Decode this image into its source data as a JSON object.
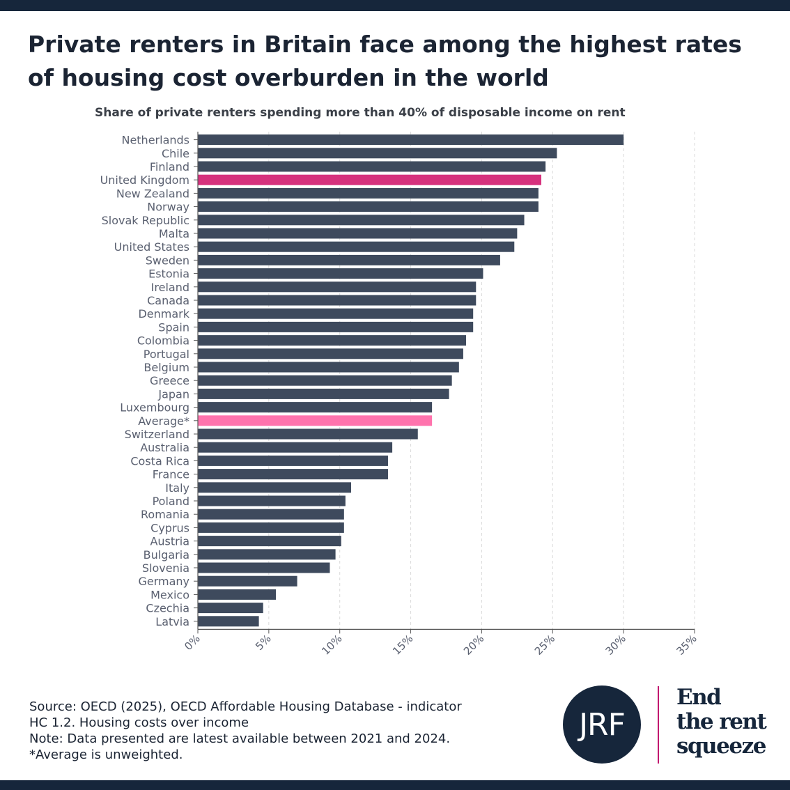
{
  "title": "Private renters in Britain face among the highest rates of housing cost overburden in the world",
  "chart_data": {
    "type": "bar",
    "orientation": "horizontal",
    "subtitle": "Share of private renters spending more than 40% of disposable income on rent",
    "categories": [
      "Netherlands",
      "Chile",
      "Finland",
      "United Kingdom",
      "New Zealand",
      "Norway",
      "Slovak Republic",
      "Malta",
      "United States",
      "Sweden",
      "Estonia",
      "Ireland",
      "Canada",
      "Denmark",
      "Spain",
      "Colombia",
      "Portugal",
      "Belgium",
      "Greece",
      "Japan",
      "Luxembourg",
      "Average*",
      "Switzerland",
      "Australia",
      "Costa Rica",
      "France",
      "Italy",
      "Poland",
      "Romania",
      "Cyprus",
      "Austria",
      "Bulgaria",
      "Slovenia",
      "Germany",
      "Mexico",
      "Czechia",
      "Latvia"
    ],
    "values": [
      30.0,
      25.3,
      24.5,
      24.2,
      24.0,
      24.0,
      23.0,
      22.5,
      22.3,
      21.3,
      20.1,
      19.6,
      19.6,
      19.4,
      19.4,
      18.9,
      18.7,
      18.4,
      17.9,
      17.7,
      16.5,
      16.5,
      15.5,
      13.7,
      13.4,
      13.4,
      10.8,
      10.4,
      10.3,
      10.3,
      10.1,
      9.7,
      9.3,
      7.0,
      5.5,
      4.6,
      4.3
    ],
    "xlim": [
      0,
      35
    ],
    "x_ticks": [
      0,
      5,
      10,
      15,
      20,
      25,
      30,
      35
    ],
    "x_tick_labels": [
      "0%",
      "5%",
      "10%",
      "15%",
      "20%",
      "25%",
      "30%",
      "35%"
    ],
    "grid": "vertical dashed",
    "colors": {
      "default": "#3e4a5d",
      "United Kingdom": "#d6317d",
      "Average*": "#ff73ad"
    }
  },
  "source_lines": [
    "Source: OECD (2025), OECD Affordable Housing Database - indicator",
    "HC 1.2. Housing costs over income",
    "Note: Data presented are latest available between 2021 and 2024.",
    "*Average is unweighted."
  ],
  "logo": {
    "text": "JRF"
  },
  "campaign_lines": [
    "End",
    "the rent",
    "squeeze"
  ]
}
